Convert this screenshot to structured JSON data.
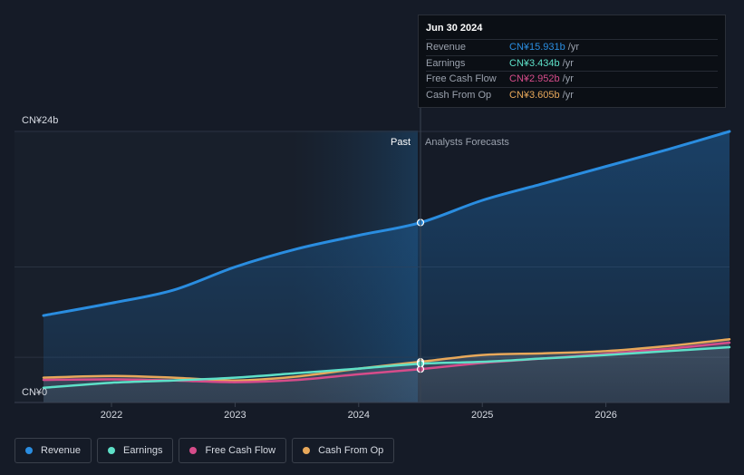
{
  "chart_data": {
    "type": "area",
    "y_top_label": "CN¥24b",
    "y_bottom_label": "CN¥0",
    "ylim": [
      0,
      24
    ],
    "xlim": [
      2021.45,
      2027.0
    ],
    "x_ticks": [
      2022,
      2023,
      2024,
      2025,
      2026
    ],
    "x_tick_labels": [
      "2022",
      "2023",
      "2024",
      "2025",
      "2026"
    ],
    "divider_x": 2024.5,
    "past_label": "Past",
    "forecast_label": "Analysts Forecasts",
    "series": [
      {
        "name": "Revenue",
        "color": "#2a8de0",
        "points": [
          [
            2021.45,
            7.7
          ],
          [
            2022.0,
            8.8
          ],
          [
            2022.5,
            9.95
          ],
          [
            2023.0,
            12.0
          ],
          [
            2023.5,
            13.6
          ],
          [
            2024.0,
            14.8
          ],
          [
            2024.5,
            15.931
          ],
          [
            2025.0,
            17.9
          ],
          [
            2025.5,
            19.4
          ],
          [
            2026.0,
            20.9
          ],
          [
            2026.5,
            22.4
          ],
          [
            2027.0,
            24.0
          ]
        ]
      },
      {
        "name": "Earnings",
        "color": "#5ee0c8",
        "points": [
          [
            2021.45,
            1.3
          ],
          [
            2022.0,
            1.75
          ],
          [
            2022.5,
            1.95
          ],
          [
            2023.0,
            2.2
          ],
          [
            2023.5,
            2.6
          ],
          [
            2024.0,
            3.0
          ],
          [
            2024.5,
            3.434
          ],
          [
            2025.0,
            3.6
          ],
          [
            2025.5,
            3.9
          ],
          [
            2026.0,
            4.2
          ],
          [
            2026.5,
            4.55
          ],
          [
            2027.0,
            4.9
          ]
        ]
      },
      {
        "name": "Free Cash Flow",
        "color": "#d64c8a",
        "points": [
          [
            2021.45,
            2.0
          ],
          [
            2022.0,
            2.05
          ],
          [
            2022.5,
            1.95
          ],
          [
            2023.0,
            1.8
          ],
          [
            2023.5,
            2.0
          ],
          [
            2024.0,
            2.5
          ],
          [
            2024.5,
            2.952
          ],
          [
            2025.0,
            3.5
          ],
          [
            2025.5,
            3.9
          ],
          [
            2026.0,
            4.3
          ],
          [
            2026.5,
            4.75
          ],
          [
            2027.0,
            5.3
          ]
        ]
      },
      {
        "name": "Cash From Op",
        "color": "#e8a85a",
        "points": [
          [
            2021.45,
            2.2
          ],
          [
            2022.0,
            2.35
          ],
          [
            2022.5,
            2.2
          ],
          [
            2023.0,
            1.95
          ],
          [
            2023.5,
            2.3
          ],
          [
            2024.0,
            3.0
          ],
          [
            2024.5,
            3.605
          ],
          [
            2025.0,
            4.2
          ],
          [
            2025.5,
            4.35
          ],
          [
            2026.0,
            4.55
          ],
          [
            2026.5,
            5.0
          ],
          [
            2027.0,
            5.6
          ]
        ]
      }
    ]
  },
  "tooltip": {
    "date": "Jun 30 2024",
    "rows": [
      {
        "label": "Revenue",
        "value": "CN¥15.931b",
        "unit": "/yr",
        "color": "#2a8de0"
      },
      {
        "label": "Earnings",
        "value": "CN¥3.434b",
        "unit": "/yr",
        "color": "#5ee0c8"
      },
      {
        "label": "Free Cash Flow",
        "value": "CN¥2.952b",
        "unit": "/yr",
        "color": "#d64c8a"
      },
      {
        "label": "Cash From Op",
        "value": "CN¥3.605b",
        "unit": "/yr",
        "color": "#e8a85a"
      }
    ]
  },
  "legend": [
    {
      "label": "Revenue",
      "color": "#2a8de0"
    },
    {
      "label": "Earnings",
      "color": "#5ee0c8"
    },
    {
      "label": "Free Cash Flow",
      "color": "#d64c8a"
    },
    {
      "label": "Cash From Op",
      "color": "#e8a85a"
    }
  ]
}
